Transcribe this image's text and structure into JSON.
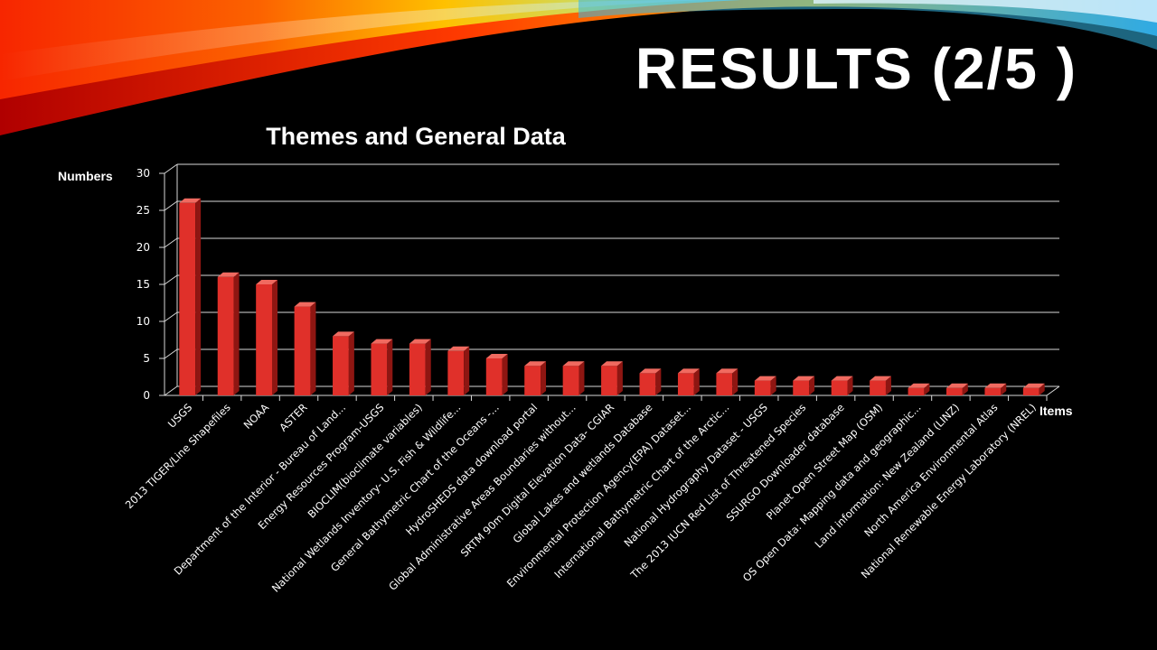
{
  "slide": {
    "title": "RESULTS (2/5 )"
  },
  "chart_data": {
    "type": "bar",
    "title": "Themes and General Data",
    "ylabel": "Numbers",
    "xlabel": "Items",
    "ylim": [
      0,
      30
    ],
    "yticks": [
      0,
      5,
      10,
      15,
      20,
      25,
      30
    ],
    "grid": true,
    "bar_color": "#e0302a",
    "categories": [
      "USGS",
      "2013 TIGER/Line Shapefiles",
      "NOAA",
      "ASTER",
      "Department of the Interior - Bureau of Land...",
      "Energy Resources Program-USGS",
      "BIOCLIM(bioclimate variables)",
      "National Wetlands Inventory- U.S. Fish & Wildlife...",
      "General Bathymetric Chart of the Oceans -...",
      "HydroSHEDS data download portal",
      "Global Administrative Areas Boundaries without...",
      "SRTM 90m Digital Elevation Data- CGIAR",
      "Global Lakes and wetlands Database",
      "Environmental Protection Agency(EPA) Dataset...",
      "International Bathymetric Chart of the Arctic...",
      "National Hydrography Dataset - USGS",
      "The 2013 IUCN Red List of Threatened Species",
      "SSURGO Downloader database",
      "Planet Open Street Map (OSM)",
      "OS Open Data: Mapping data and geographic...",
      "Land information: New Zealand (LINZ)",
      "North America Environmental Atlas",
      "National Renewable Energy Laboratory (NREL)"
    ],
    "values": [
      26,
      16,
      15,
      12,
      8,
      7,
      7,
      6,
      5,
      4,
      4,
      4,
      3,
      3,
      3,
      2,
      2,
      2,
      2,
      1,
      1,
      1,
      1
    ]
  }
}
